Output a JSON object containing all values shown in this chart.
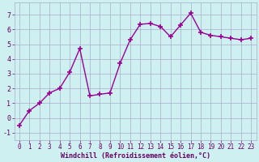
{
  "x": [
    0,
    1,
    2,
    3,
    4,
    5,
    6,
    7,
    8,
    9,
    10,
    11,
    12,
    13,
    14,
    15,
    16,
    17,
    18,
    19,
    20,
    21,
    22,
    23
  ],
  "y": [
    -0.5,
    0.5,
    1.0,
    1.7,
    2.0,
    3.1,
    4.7,
    1.5,
    1.6,
    1.7,
    3.7,
    5.3,
    6.35,
    6.4,
    6.2,
    5.5,
    6.3,
    7.1,
    5.8,
    5.6,
    5.5,
    5.4,
    5.3,
    5.4
  ],
  "line_color": "#990099",
  "marker": "+",
  "marker_size": 4,
  "line_width": 1.0,
  "bg_color": "#cff0f0",
  "grid_color": "#aaaacc",
  "xlabel": "Windchill (Refroidissement éolien,°C)",
  "ylim": [
    -1.5,
    7.8
  ],
  "xlim": [
    -0.5,
    23.5
  ],
  "yticks": [
    -1,
    0,
    1,
    2,
    3,
    4,
    5,
    6,
    7
  ],
  "xticks": [
    0,
    1,
    2,
    3,
    4,
    5,
    6,
    7,
    8,
    9,
    10,
    11,
    12,
    13,
    14,
    15,
    16,
    17,
    18,
    19,
    20,
    21,
    22,
    23
  ]
}
